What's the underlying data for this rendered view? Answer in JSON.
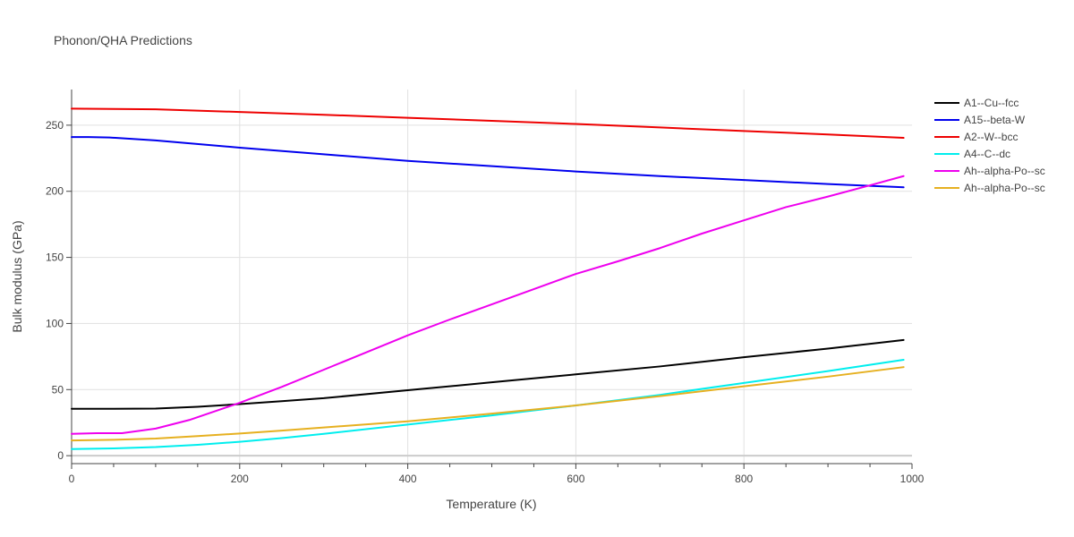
{
  "chart_data": {
    "type": "line",
    "title": "Phonon/QHA Predictions",
    "xlabel": "Temperature (K)",
    "ylabel": "Bulk modulus (GPa)",
    "xlim": [
      0,
      1000
    ],
    "ylim": [
      -6,
      277
    ],
    "x_ticks": [
      0,
      200,
      400,
      600,
      800,
      1000
    ],
    "y_ticks": [
      0,
      50,
      100,
      150,
      200,
      250
    ],
    "x_minor_ticks": [
      50,
      100,
      150,
      250,
      300,
      350,
      450,
      500,
      550,
      650,
      700,
      750,
      850,
      900,
      950
    ],
    "grid": true,
    "legend_position": "right",
    "series": [
      {
        "name": "A1--Cu--fcc",
        "color": "#000000",
        "x": [
          0,
          50,
          100,
          150,
          200,
          250,
          300,
          400,
          500,
          600,
          700,
          800,
          900,
          990
        ],
        "y": [
          35.5,
          35.5,
          35.6,
          37,
          39,
          41.2,
          43.5,
          49.5,
          55.5,
          61.5,
          67.5,
          74.5,
          81,
          87.5
        ]
      },
      {
        "name": "A15--beta-W",
        "color": "#0000ee",
        "x": [
          0,
          20,
          45,
          100,
          200,
          300,
          400,
          500,
          600,
          700,
          800,
          900,
          990
        ],
        "y": [
          241,
          241,
          240.7,
          238.5,
          233,
          228,
          223,
          219,
          215,
          211.5,
          208.5,
          205.5,
          203
        ]
      },
      {
        "name": "A2--W--bcc",
        "color": "#ee0000",
        "x": [
          0,
          50,
          100,
          200,
          300,
          400,
          500,
          600,
          700,
          800,
          900,
          990
        ],
        "y": [
          262.5,
          262.3,
          262,
          260,
          257.9,
          255.6,
          253.3,
          250.9,
          248.3,
          245.6,
          243,
          240.4
        ]
      },
      {
        "name": "A4--C--dc",
        "color": "#00eeee",
        "x": [
          0,
          50,
          100,
          150,
          200,
          250,
          300,
          400,
          500,
          600,
          700,
          800,
          900,
          990
        ],
        "y": [
          5,
          5.5,
          6.5,
          8.2,
          10.5,
          13.3,
          16.5,
          23.5,
          30.5,
          38,
          46,
          55,
          64,
          72.5
        ]
      },
      {
        "name": "Ah--alpha-Po--sc",
        "color": "#ee00ee",
        "x": [
          0,
          30,
          60,
          100,
          140,
          170,
          200,
          250,
          300,
          350,
          400,
          450,
          500,
          550,
          600,
          650,
          700,
          750,
          800,
          850,
          900,
          950,
          990
        ],
        "y": [
          16.5,
          17,
          17,
          20.5,
          27,
          33.5,
          40,
          52,
          65,
          78,
          91,
          103,
          114.5,
          126,
          137.5,
          147,
          157,
          168,
          178,
          188,
          196,
          204.5,
          211.5
        ]
      },
      {
        "name": "Ah--alpha-Po--sc",
        "color": "#e6b020",
        "x": [
          0,
          50,
          100,
          150,
          200,
          250,
          300,
          400,
          500,
          600,
          700,
          800,
          900,
          990
        ],
        "y": [
          11.5,
          12,
          13,
          14.8,
          16.8,
          19,
          21.3,
          26,
          31.8,
          38,
          45,
          52.5,
          59.8,
          67
        ]
      }
    ]
  }
}
